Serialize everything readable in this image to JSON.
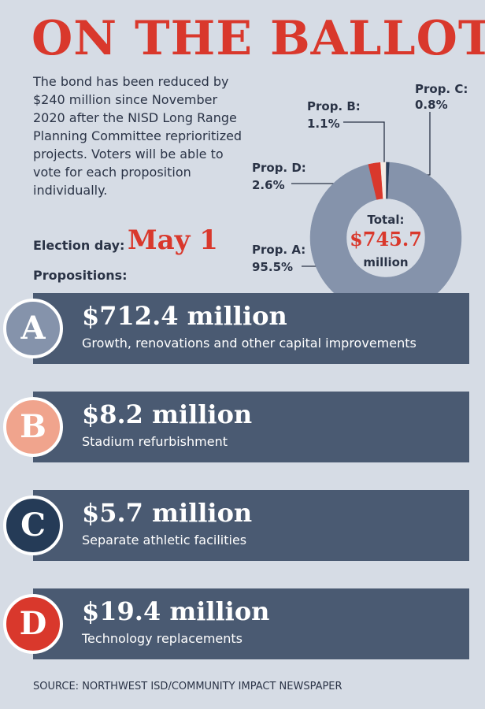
{
  "title": "ON THE BALLOT",
  "intro": "The bond has been reduced by $240 million since November 2020 after the NISD Long Range Planning Committee reprioritized projects. Voters will be able to vote for each proposition individually.",
  "election_label": "Election day:",
  "election_date": "May 1",
  "propositions_label": "Propositions:",
  "chart_data": {
    "type": "pie",
    "categories": [
      "Prop. A:",
      "Prop. B:",
      "Prop. C:",
      "Prop. D:"
    ],
    "values": [
      95.5,
      1.1,
      0.8,
      2.6
    ],
    "value_labels": [
      "95.5%",
      "1.1%",
      "0.8%",
      "2.6%"
    ],
    "colors": [
      "#8593ab",
      "#f4ebe4",
      "#2b3f5a",
      "#d9382c"
    ],
    "center_label": "Total:",
    "center_value": "$745.7",
    "center_unit": "million"
  },
  "propositions": [
    {
      "letter": "A",
      "amount": "$712.4 million",
      "description": "Growth, renovations and other capital improvements",
      "color": "#8593ab"
    },
    {
      "letter": "B",
      "amount": "$8.2 million",
      "description": "Stadium refurbishment",
      "color": "#f0a48d"
    },
    {
      "letter": "C",
      "amount": "$5.7 million",
      "description": "Separate athletic facilities",
      "color": "#253b57"
    },
    {
      "letter": "D",
      "amount": "$19.4 million",
      "description": "Technology replacements",
      "color": "#d9382c"
    }
  ],
  "source": "SOURCE: NORTHWEST ISD/COMMUNITY IMPACT NEWSPAPER"
}
